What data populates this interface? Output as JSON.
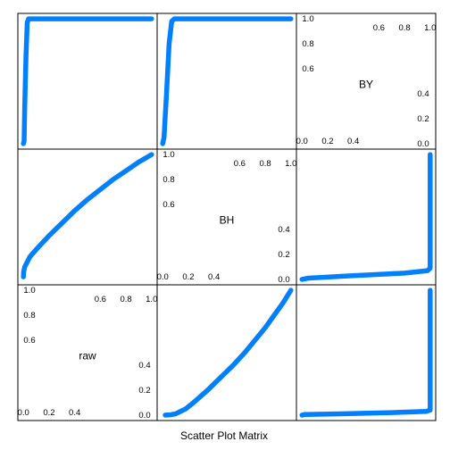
{
  "chart_data": {
    "type": "scatter",
    "layout": "scatterplot-matrix",
    "xlabel": "Scatter Plot Matrix",
    "variables": [
      "raw",
      "BH",
      "BY"
    ],
    "axis_range": [
      0,
      1
    ],
    "ticks": {
      "low": [
        "0.0",
        "0.2",
        "0.4"
      ],
      "high": [
        "0.6",
        "0.8",
        "1.0"
      ]
    },
    "series_color": "#0080ff",
    "curves": {
      "BH_vs_raw": [
        [
          0.0,
          0.02
        ],
        [
          0.002,
          0.06
        ],
        [
          0.01,
          0.1
        ],
        [
          0.05,
          0.18
        ],
        [
          0.1,
          0.24
        ],
        [
          0.2,
          0.35
        ],
        [
          0.3,
          0.45
        ],
        [
          0.4,
          0.55
        ],
        [
          0.5,
          0.64
        ],
        [
          0.6,
          0.72
        ],
        [
          0.7,
          0.8
        ],
        [
          0.8,
          0.87
        ],
        [
          0.9,
          0.94
        ],
        [
          1.0,
          1.0
        ]
      ],
      "BY_vs_raw": [
        [
          0.0,
          0.0
        ],
        [
          0.005,
          0.02
        ],
        [
          0.01,
          0.3
        ],
        [
          0.02,
          0.7
        ],
        [
          0.03,
          0.97
        ],
        [
          0.04,
          1.0
        ],
        [
          0.2,
          1.0
        ],
        [
          0.4,
          1.0
        ],
        [
          0.6,
          1.0
        ],
        [
          0.8,
          1.0
        ],
        [
          1.0,
          1.0
        ]
      ],
      "BY_vs_BH": [
        [
          0.0,
          0.0
        ],
        [
          0.01,
          0.05
        ],
        [
          0.03,
          0.4
        ],
        [
          0.05,
          0.8
        ],
        [
          0.07,
          0.98
        ],
        [
          0.09,
          1.0
        ],
        [
          0.3,
          1.0
        ],
        [
          0.5,
          1.0
        ],
        [
          0.7,
          1.0
        ],
        [
          0.85,
          1.0
        ],
        [
          1.0,
          1.0
        ]
      ]
    },
    "grid": false,
    "legend": "none"
  }
}
